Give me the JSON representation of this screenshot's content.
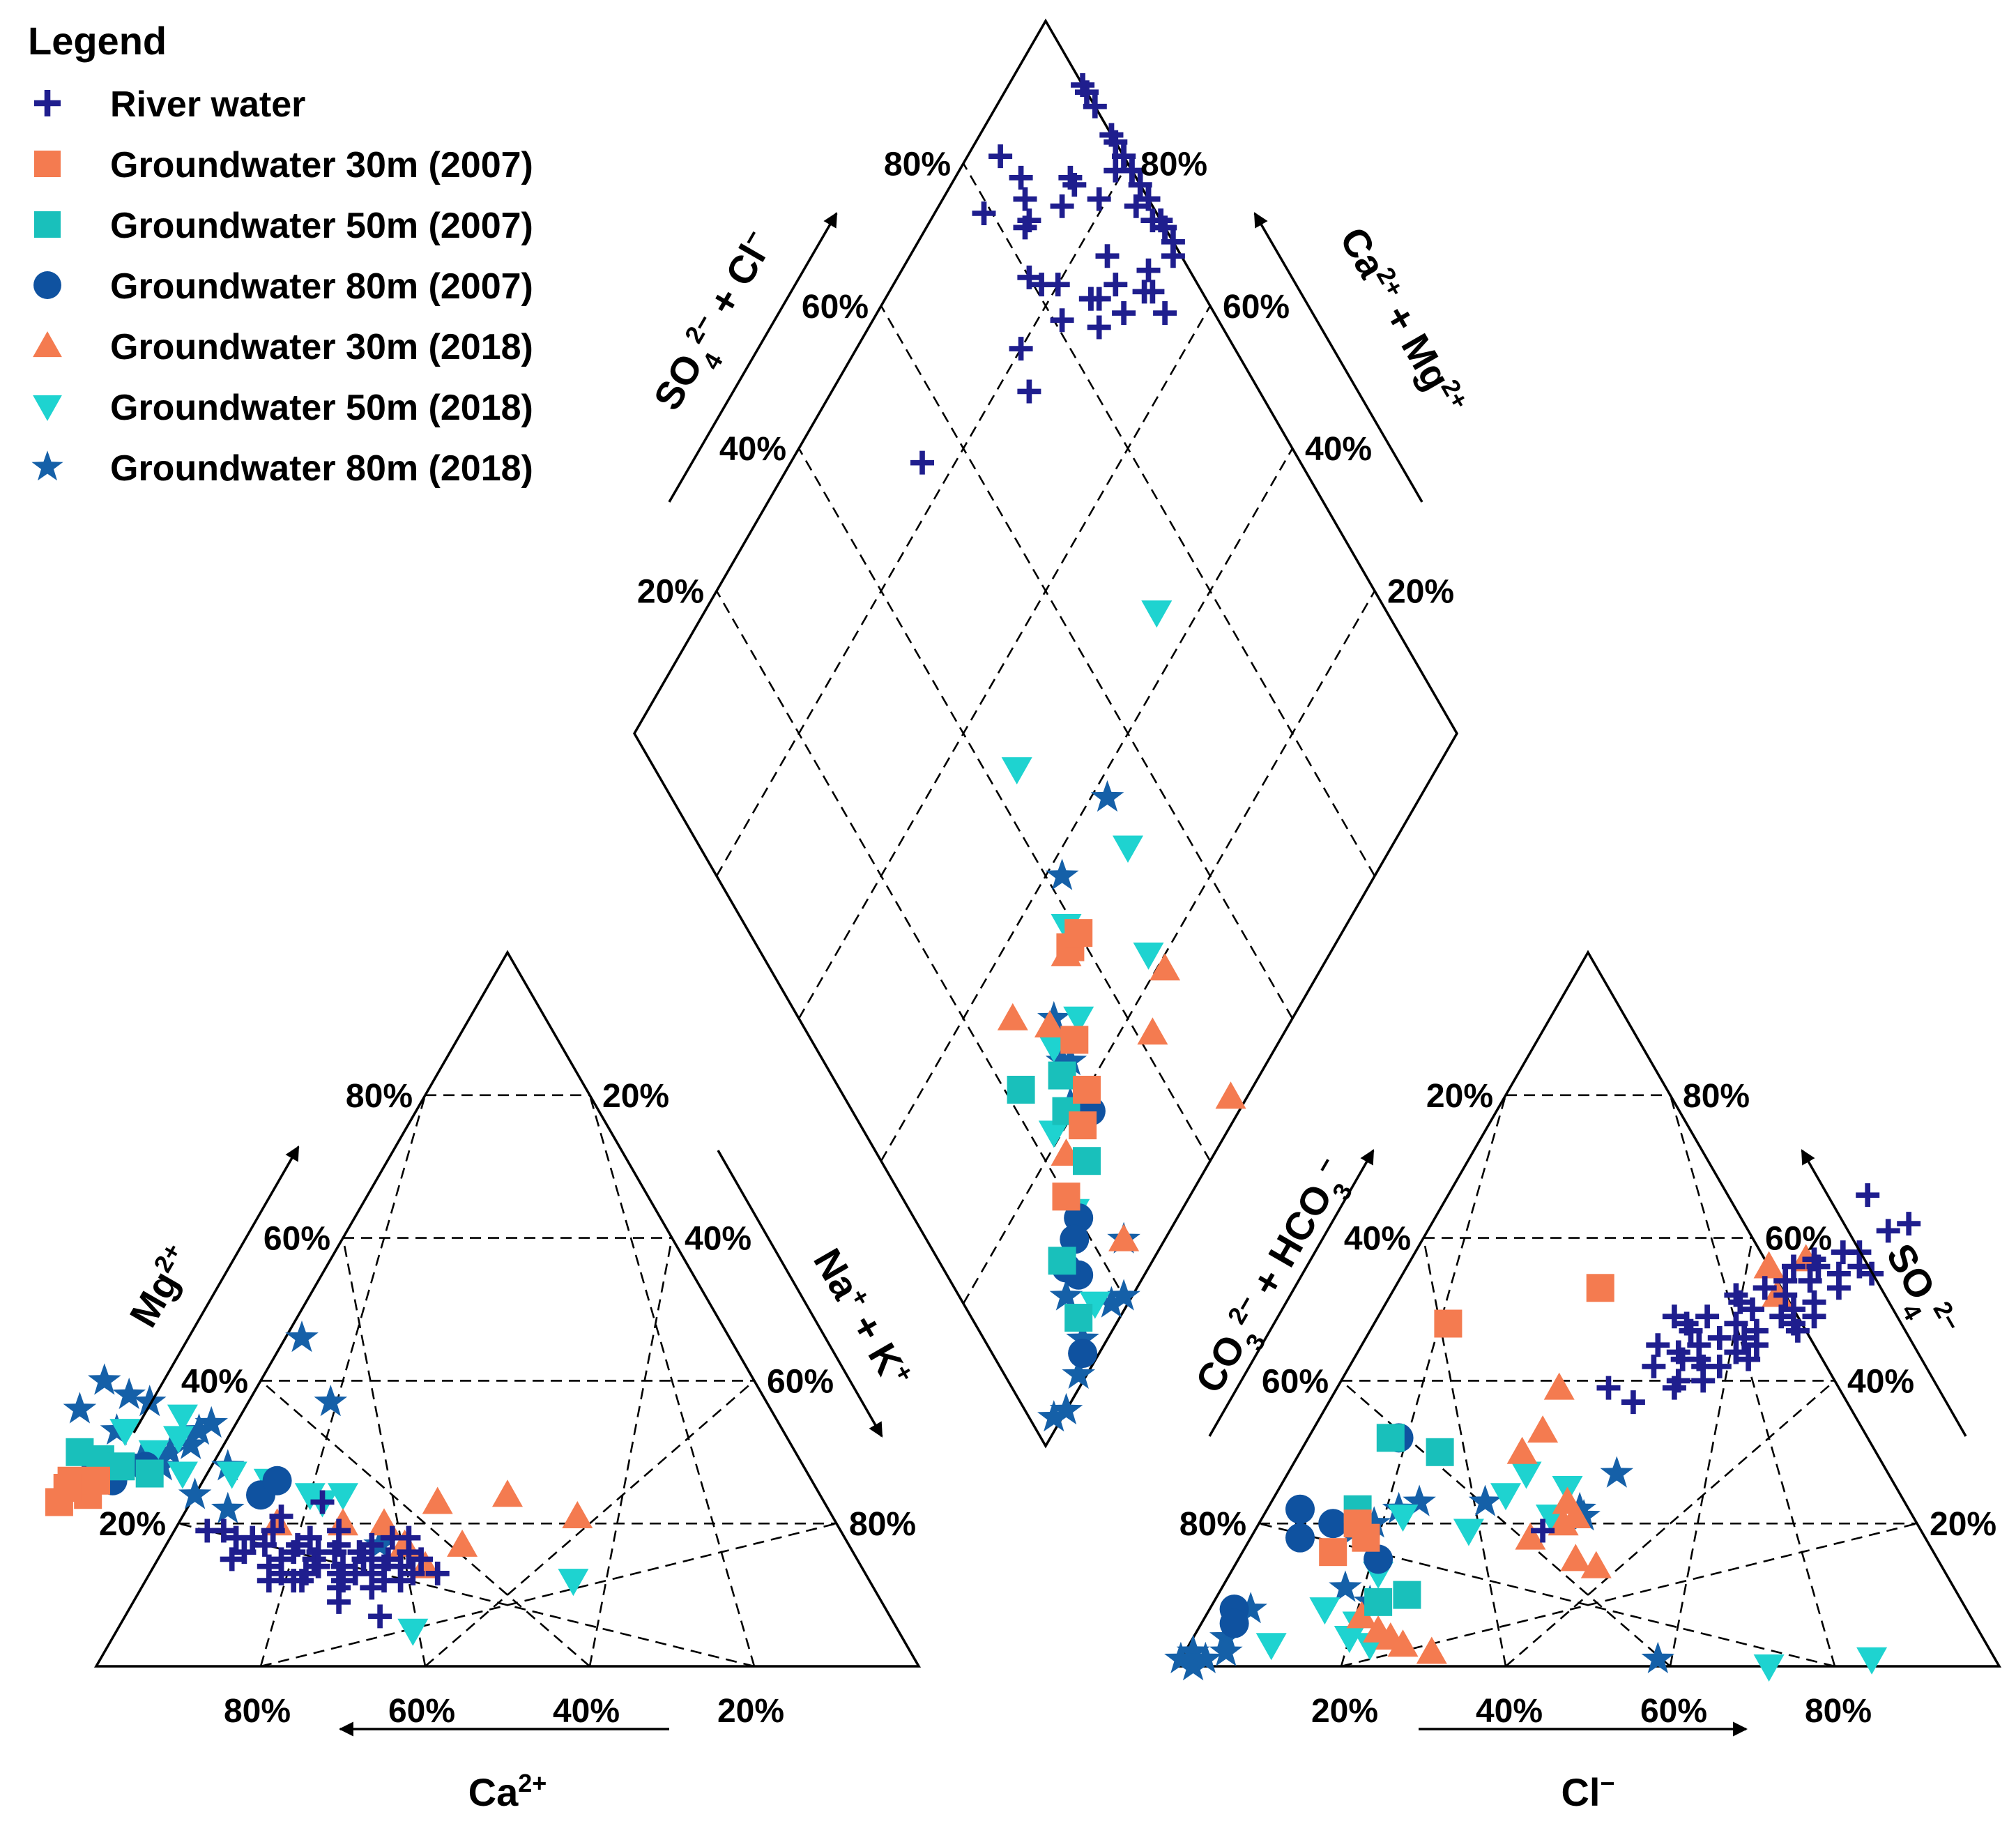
{
  "chart_data": {
    "type": "piper",
    "legend": {
      "title": "Legend",
      "position": "top-left",
      "entries": [
        {
          "id": "river",
          "label": "River water",
          "marker": "plus",
          "color": "#1f1e8e"
        },
        {
          "id": "gw30_2007",
          "label": "Groundwater 30m (2007)",
          "marker": "square",
          "color": "#f47b50"
        },
        {
          "id": "gw50_2007",
          "label": "Groundwater 50m (2007)",
          "marker": "square",
          "color": "#19c0bb"
        },
        {
          "id": "gw80_2007",
          "label": "Groundwater 80m (2007)",
          "marker": "circle",
          "color": "#0f52a0"
        },
        {
          "id": "gw30_2018",
          "label": "Groundwater 30m (2018)",
          "marker": "triangle-up",
          "color": "#f47b50"
        },
        {
          "id": "gw50_2018",
          "label": "Groundwater 50m (2018)",
          "marker": "triangle-down",
          "color": "#1ed3d0"
        },
        {
          "id": "gw80_2018",
          "label": "Groundwater 80m (2018)",
          "marker": "star",
          "color": "#1560a8"
        }
      ]
    },
    "cation_triangle": {
      "axis_labels": {
        "mg": {
          "main": "Mg",
          "sup": "2+"
        },
        "na_k": {
          "main": "Na",
          "sup1": "+",
          "mid": " + K",
          "sup2": "+"
        },
        "ca": {
          "main": "Ca",
          "sup": "2+"
        }
      },
      "left_ticks": [
        "20%",
        "40%",
        "60%",
        "80%"
      ],
      "right_ticks": [
        "80%",
        "60%",
        "40%",
        "20%"
      ],
      "bottom_ticks": [
        "80%",
        "60%",
        "40%",
        "20%"
      ]
    },
    "anion_triangle": {
      "axis_labels": {
        "co3_hco3": {
          "a": "CO",
          "a_sub": "3",
          "a_sup": "2−",
          "b": " + HCO",
          "b_sub": "3",
          "b_sup": "−"
        },
        "so4": {
          "main": "SO",
          "sub": "4",
          "sup": "2−"
        },
        "cl": {
          "main": "Cl",
          "sup": "−"
        }
      },
      "left_ticks": [
        "80%",
        "60%",
        "40%",
        "20%"
      ],
      "right_ticks": [
        "20%",
        "40%",
        "60%",
        "80%"
      ],
      "bottom_ticks": [
        "20%",
        "40%",
        "60%",
        "80%"
      ]
    },
    "diamond": {
      "axis_labels": {
        "so4_cl": {
          "a": "SO",
          "a_sub": "4",
          "a_sup": "2−",
          "b": " + Cl",
          "b_sup": "−"
        },
        "ca_mg": {
          "a": "Ca",
          "a_sup": "2+",
          "b": " + Mg",
          "b_sup": "2+"
        }
      },
      "left_ticks": [
        "20%",
        "40%",
        "60%",
        "80%"
      ],
      "right_ticks": [
        "20%",
        "40%",
        "60%",
        "80%"
      ]
    },
    "series": [
      {
        "id": "river",
        "cations": [
          [
            52,
            13
          ],
          [
            56,
            14
          ],
          [
            60,
            15
          ],
          [
            63,
            14
          ],
          [
            66,
            15
          ],
          [
            68,
            13
          ],
          [
            70,
            15
          ],
          [
            72,
            14
          ],
          [
            54,
            16
          ],
          [
            58,
            17
          ],
          [
            62,
            17
          ],
          [
            65,
            16
          ],
          [
            67,
            17
          ],
          [
            71,
            17
          ],
          [
            74,
            16
          ],
          [
            76,
            15
          ],
          [
            59,
            12
          ],
          [
            61,
            11
          ],
          [
            64,
            12
          ],
          [
            69,
            12
          ],
          [
            73,
            12
          ],
          [
            62,
            13
          ],
          [
            64,
            13
          ],
          [
            66,
            14
          ],
          [
            58,
            14
          ],
          [
            60,
            13
          ],
          [
            57,
            12
          ],
          [
            55,
            13
          ],
          [
            63,
            16
          ],
          [
            65,
            18
          ],
          [
            62,
            7
          ],
          [
            66,
            9
          ],
          [
            65,
            11
          ],
          [
            61,
            19
          ],
          [
            61,
            23
          ],
          [
            67,
            21
          ],
          [
            69,
            19
          ],
          [
            72,
            18
          ],
          [
            74,
            18
          ],
          [
            75,
            19
          ],
          [
            77,
            19
          ],
          [
            53,
            18
          ],
          [
            55,
            18
          ],
          [
            60,
            16
          ],
          [
            59,
            15
          ],
          [
            57,
            15
          ],
          [
            53,
            15
          ],
          [
            70,
            12
          ],
          [
            68,
            16
          ],
          [
            71,
            13
          ]
        ],
        "anions": [
          [
            47,
            47
          ],
          [
            45,
            50
          ],
          [
            48,
            52
          ],
          [
            50,
            54
          ],
          [
            52,
            51
          ],
          [
            49,
            49
          ],
          [
            46,
            46
          ],
          [
            44,
            48
          ],
          [
            43,
            46
          ],
          [
            41,
            45
          ],
          [
            47,
            54
          ],
          [
            50,
            56
          ],
          [
            53,
            55
          ],
          [
            55,
            56
          ],
          [
            54,
            58
          ],
          [
            52,
            58
          ],
          [
            49,
            57
          ],
          [
            47,
            56
          ],
          [
            45,
            53
          ],
          [
            42,
            52
          ],
          [
            40,
            49
          ],
          [
            38,
            48
          ],
          [
            36,
            45
          ],
          [
            39,
            44
          ],
          [
            43,
            42
          ],
          [
            46,
            44
          ],
          [
            48,
            45
          ],
          [
            51,
            48
          ],
          [
            54,
            53
          ],
          [
            56,
            61
          ],
          [
            51,
            66
          ],
          [
            58,
            62
          ],
          [
            33,
            39
          ],
          [
            37,
            37
          ],
          [
            41,
            39
          ],
          [
            44,
            40
          ],
          [
            40,
            43
          ],
          [
            42,
            43
          ],
          [
            39,
            47
          ],
          [
            37,
            42
          ],
          [
            36,
            49
          ],
          [
            50,
            50
          ],
          [
            52,
            47
          ],
          [
            48,
            43
          ],
          [
            45,
            42
          ],
          [
            57,
            55
          ],
          [
            43,
            51
          ],
          [
            41,
            40
          ],
          [
            53,
            49
          ],
          [
            35,
            19
          ]
        ]
      },
      {
        "id": "gw30_2007",
        "cations": [
          [
            89,
            24
          ],
          [
            93,
            23
          ],
          [
            90,
            26
          ],
          [
            87,
            26
          ],
          [
            91,
            25
          ]
        ],
        "anions": [
          [
            9,
            48
          ],
          [
            25,
            53
          ],
          [
            12,
            20
          ],
          [
            11,
            16
          ],
          [
            14,
            18
          ]
        ]
      },
      {
        "id": "gw50_2007",
        "cations": [
          [
            87,
            30
          ],
          [
            85,
            29
          ],
          [
            83,
            28
          ],
          [
            80,
            27
          ]
        ],
        "anions": [
          [
            10,
            32
          ],
          [
            17,
            30
          ],
          [
            11,
            22
          ],
          [
            23,
            10
          ],
          [
            20,
            9
          ]
        ]
      },
      {
        "id": "gw80_2007",
        "cations": [
          [
            86,
            28
          ],
          [
            85,
            26
          ],
          [
            80,
            28
          ],
          [
            68,
            24
          ],
          [
            65,
            26
          ]
        ],
        "anions": [
          [
            11,
            32
          ],
          [
            4,
            22
          ],
          [
            6,
            18
          ],
          [
            9,
            20
          ],
          [
            3,
            8
          ],
          [
            4,
            6
          ],
          [
            17,
            15
          ]
        ]
      },
      {
        "id": "gw30_2018",
        "cations": [
          [
            68,
            20
          ],
          [
            60,
            20
          ],
          [
            55,
            20
          ],
          [
            54,
            17
          ],
          [
            53,
            14
          ],
          [
            47,
            23
          ],
          [
            38,
            24
          ],
          [
            31,
            21
          ],
          [
            47,
            17
          ]
        ],
        "anions": [
          [
            27,
            39
          ],
          [
            28,
            33
          ],
          [
            27,
            30
          ],
          [
            22,
            5
          ],
          [
            26,
            3
          ],
          [
            19,
            7
          ],
          [
            24,
            4
          ],
          [
            36,
            23
          ],
          [
            38,
            21
          ],
          [
            41,
            15
          ],
          [
            44,
            14
          ],
          [
            34,
            18
          ],
          [
            37,
            20
          ],
          [
            44,
            56
          ],
          [
            47,
            52
          ],
          [
            48,
            57
          ],
          [
            30,
            2
          ]
        ]
      },
      {
        "id": "gw50_2018",
        "cations": [
          [
            80,
            33
          ],
          [
            78,
            30
          ],
          [
            76,
            27
          ],
          [
            74,
            32
          ],
          [
            72,
            35
          ],
          [
            70,
            27
          ],
          [
            66,
            26
          ],
          [
            62,
            24
          ],
          [
            61,
            23
          ],
          [
            58,
            24
          ],
          [
            36,
            12
          ],
          [
            59,
            5
          ]
        ],
        "anions": [
          [
            18,
            13
          ],
          [
            14,
            8
          ],
          [
            19,
            6
          ],
          [
            22,
            3
          ],
          [
            26,
            19
          ],
          [
            28,
            24
          ],
          [
            29,
            27
          ],
          [
            17,
            21
          ],
          [
            72,
            0
          ],
          [
            84,
            1
          ],
          [
            10,
            3
          ],
          [
            19,
            4
          ],
          [
            35,
            21
          ],
          [
            35,
            25
          ]
        ]
      },
      {
        "id": "gw80_2018",
        "cations": [
          [
            84,
            36
          ],
          [
            81,
            33
          ],
          [
            79,
            40
          ],
          [
            77,
            38
          ],
          [
            75,
            37
          ],
          [
            76,
            30
          ],
          [
            80,
            29
          ],
          [
            73,
            31
          ],
          [
            71,
            33
          ],
          [
            69,
            34
          ],
          [
            76,
            24
          ],
          [
            70,
            28
          ],
          [
            53,
            37
          ],
          [
            52,
            46
          ],
          [
            57,
            17
          ],
          [
            73,
            22
          ],
          [
            78,
            28
          ]
        ],
        "anions": [
          [
            0,
            1
          ],
          [
            2,
            0
          ],
          [
            1,
            2
          ],
          [
            4,
            4
          ],
          [
            3,
            1
          ],
          [
            5,
            2
          ],
          [
            5,
            8
          ],
          [
            12,
            19
          ],
          [
            14,
            20
          ],
          [
            16,
            22
          ],
          [
            18,
            23
          ],
          [
            15,
            11
          ],
          [
            19,
            9
          ],
          [
            26,
            23
          ],
          [
            38,
            22
          ],
          [
            39,
            21
          ],
          [
            58,
            1
          ],
          [
            40,
            27
          ]
        ]
      }
    ],
    "diamond_extra": {
      "gw30_2007": [
        [
          38,
          32
        ],
        [
          40,
          32
        ],
        [
          30,
          20
        ],
        [
          32,
          25
        ],
        [
          27,
          18
        ],
        [
          20,
          15
        ]
      ],
      "gw50_2007": [
        [
          26,
          21
        ],
        [
          25,
          15
        ],
        [
          15,
          11
        ],
        [
          13,
          5
        ],
        [
          22,
          28
        ],
        [
          28,
          24
        ]
      ],
      "gw80_2007": [
        [
          29,
          18
        ],
        [
          20,
          12
        ],
        [
          16,
          8
        ],
        [
          11,
          2
        ],
        [
          15,
          10
        ],
        [
          18,
          11
        ]
      ],
      "gw30_2018": [
        [
          26,
          34
        ],
        [
          30,
          29
        ],
        [
          23,
          18
        ],
        [
          37,
          32
        ],
        [
          42,
          16
        ],
        [
          48,
          19
        ],
        [
          47,
          2
        ],
        [
          24,
          5
        ]
      ],
      "gw50_2018": [
        [
          29,
          27
        ],
        [
          23,
          21
        ],
        [
          20,
          13
        ],
        [
          16,
          4
        ],
        [
          34,
          26
        ],
        [
          39,
          34
        ],
        [
          47,
          22
        ],
        [
          44,
          51
        ],
        [
          72,
          45
        ],
        [
          52,
          32
        ]
      ],
      "gw80_2018": [
        [
          29,
          25
        ],
        [
          30,
          24
        ],
        [
          27,
          21
        ],
        [
          13,
          8
        ],
        [
          12,
          3
        ],
        [
          9,
          1
        ],
        [
          5,
          0
        ],
        [
          3,
          1
        ],
        [
          20,
          1
        ],
        [
          24,
          5
        ],
        [
          31,
          29
        ],
        [
          53,
          38
        ],
        [
          18,
          2
        ],
        [
          42,
          38
        ]
      ]
    }
  }
}
